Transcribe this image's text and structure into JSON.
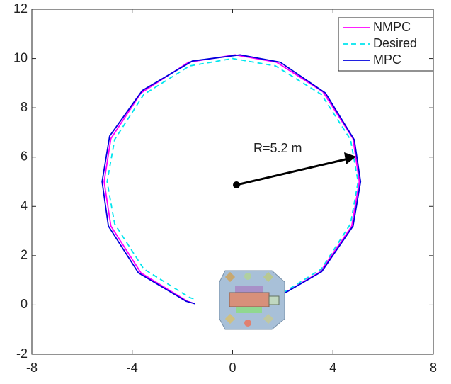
{
  "chart_data": {
    "type": "line",
    "annotation": "R=5.2 m",
    "xlim": [
      -8,
      8
    ],
    "xticks": [
      -8,
      -4,
      0,
      4,
      8
    ],
    "ylim": [
      -2,
      12
    ],
    "yticks": [
      -2,
      0,
      2,
      4,
      6,
      8,
      10,
      12
    ],
    "legend": "top-right",
    "series": [
      {
        "name": "NMPC",
        "color": "#ff00ff",
        "dash": false,
        "x": [
          1.6,
          3.5,
          4.75,
          5.05,
          4.8,
          3.6,
          1.75,
          0.1,
          -1.75,
          -3.65,
          -4.85,
          -5.12,
          -4.85,
          -3.65,
          -1.8,
          -1.5
        ],
        "values": [
          0.2,
          1.35,
          3.2,
          5,
          6.75,
          8.65,
          9.85,
          10.15,
          9.85,
          8.6,
          6.75,
          5,
          3.2,
          1.3,
          0.15,
          0.05
        ]
      },
      {
        "name": "Desired",
        "color": "#00e5ee",
        "dash": true,
        "x": [
          1.71,
          3.54,
          4.7,
          5,
          4.7,
          3.54,
          1.71,
          0,
          -1.71,
          -3.54,
          -4.7,
          -5,
          -4.7,
          -3.54,
          -1.71,
          -1.46
        ],
        "values": [
          0.3,
          1.46,
          3.29,
          5,
          6.71,
          8.54,
          9.7,
          10,
          9.7,
          8.54,
          6.71,
          5,
          3.29,
          1.46,
          0.3,
          0.22
        ]
      },
      {
        "name": "MPC",
        "color": "#0000dd",
        "dash": false,
        "x": [
          1.6,
          3.55,
          4.8,
          5.1,
          4.85,
          3.7,
          1.9,
          0.3,
          -1.6,
          -3.6,
          -4.9,
          -5.2,
          -4.95,
          -3.75,
          -1.85,
          -1.5
        ],
        "values": [
          0.2,
          1.35,
          3.2,
          5,
          6.7,
          8.6,
          9.85,
          10.15,
          9.9,
          8.7,
          6.85,
          5,
          3.2,
          1.3,
          0.15,
          0.05
        ]
      }
    ]
  }
}
